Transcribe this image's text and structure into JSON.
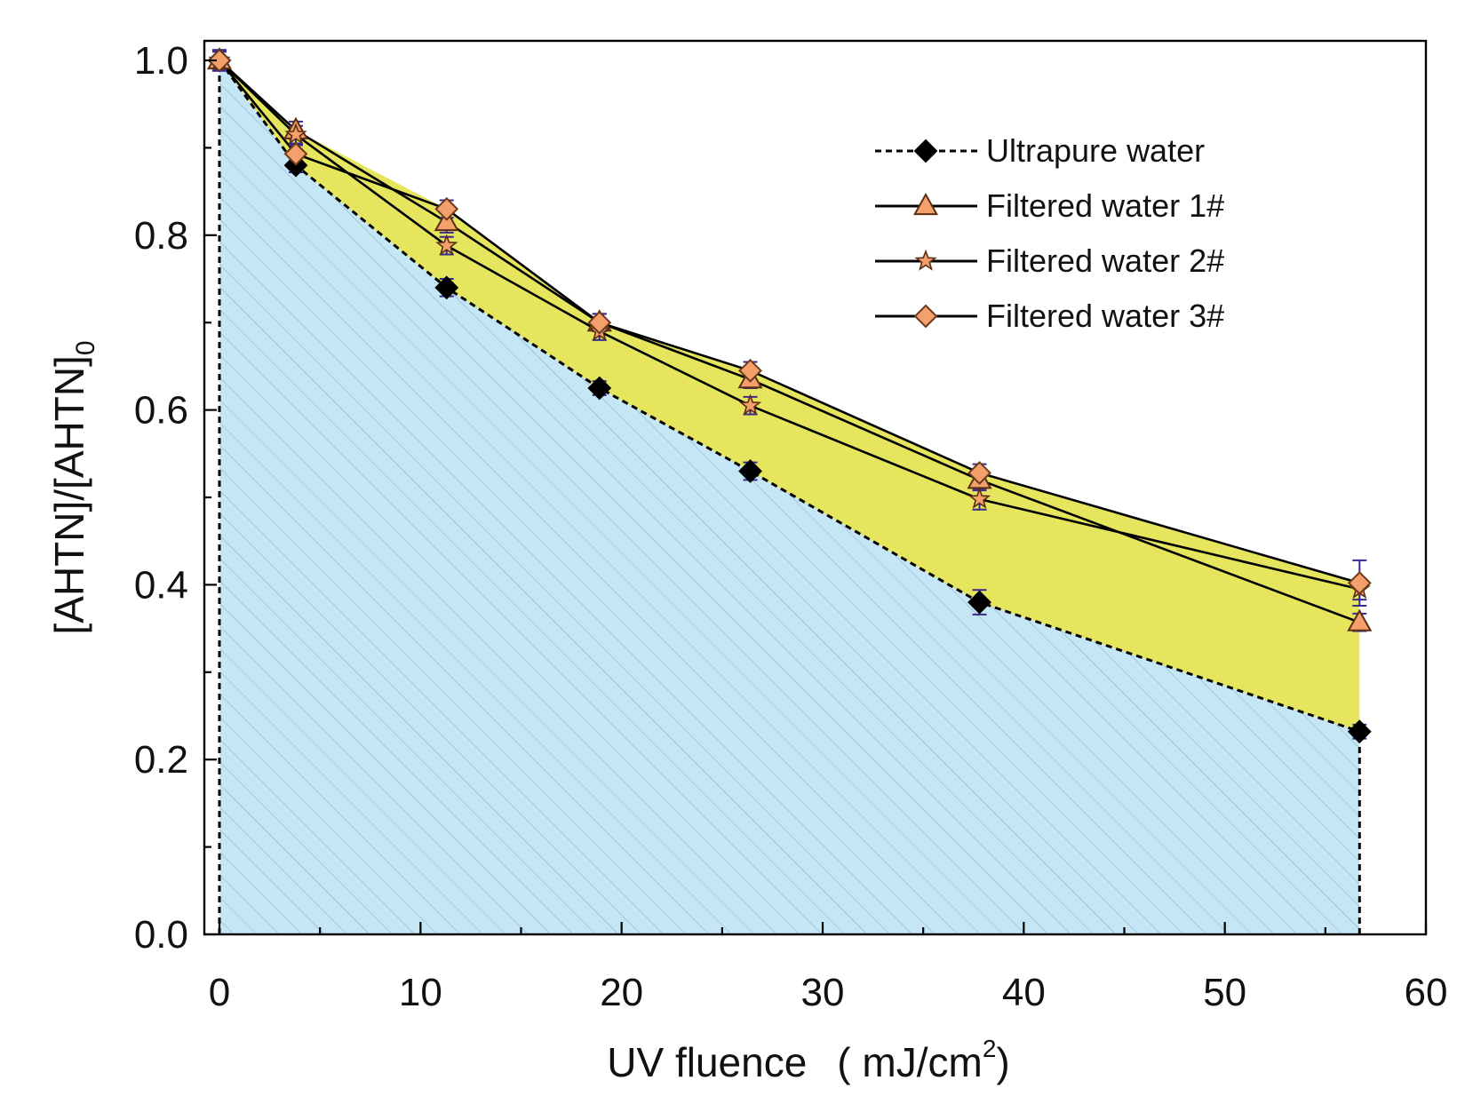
{
  "chart_data": {
    "type": "line",
    "title": "",
    "xlabel": "UV fluence",
    "xlabel_unit_prefix": "( mJ/cm",
    "xlabel_unit_sup": "2",
    "xlabel_unit_suffix": ")",
    "ylabel": "[AHTN]/[AHTN]",
    "ylabel_sub": "0",
    "xlim": [
      -0.5,
      60
    ],
    "ylim": [
      0,
      1.02
    ],
    "x_ticks": [
      "0",
      "10",
      "20",
      "30",
      "40",
      "50",
      "60"
    ],
    "y_ticks": [
      "0.0",
      "0.2",
      "0.4",
      "0.6",
      "0.8",
      "1.0"
    ],
    "x": [
      0,
      3.8,
      11.3,
      18.9,
      26.4,
      37.8,
      56.7
    ],
    "legend_position": "top-right",
    "colors": {
      "marker_fill": "#f4a06a",
      "marker_black": "#000000",
      "area_blue": "#c5e6f4",
      "area_yellow": "#e5e55e",
      "error_bar": "#3a2a8f",
      "hatch": "#8fb4cc"
    },
    "series": [
      {
        "name": "Ultrapure water",
        "marker": "diamond-black",
        "dash": true,
        "values": [
          1.0,
          0.88,
          0.74,
          0.625,
          0.53,
          0.38,
          0.232
        ],
        "errors": [
          0.012,
          0.008,
          0.01,
          0.008,
          0.01,
          0.014,
          0.008
        ]
      },
      {
        "name": "Filtered water 1#",
        "marker": "triangle",
        "dash": false,
        "values": [
          1.0,
          0.92,
          0.815,
          0.7,
          0.635,
          0.52,
          0.357
        ],
        "errors": [
          0.01,
          0.01,
          0.012,
          0.01,
          0.01,
          0.012,
          0.01
        ]
      },
      {
        "name": "Filtered water 2#",
        "marker": "star",
        "dash": false,
        "values": [
          1.0,
          0.915,
          0.788,
          0.69,
          0.605,
          0.498,
          0.395
        ],
        "errors": [
          0.01,
          0.01,
          0.01,
          0.01,
          0.01,
          0.012,
          0.012
        ]
      },
      {
        "name": "Filtered water 3#",
        "marker": "diamond",
        "dash": false,
        "values": [
          1.0,
          0.893,
          0.83,
          0.7,
          0.645,
          0.528,
          0.402
        ],
        "errors": [
          0.01,
          0.01,
          0.01,
          0.01,
          0.01,
          0.01,
          0.026
        ]
      }
    ]
  }
}
